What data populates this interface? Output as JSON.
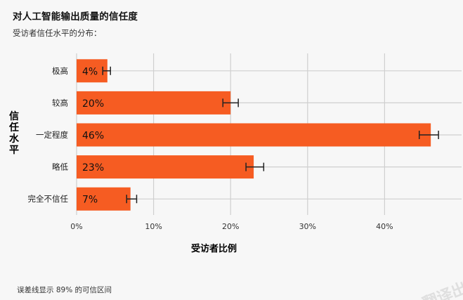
{
  "header": {
    "title": "对人工智能输出质量的信任度",
    "subtitle": "受访者信任水平的分布："
  },
  "footnote": "误差线显示 89% 的可信区间",
  "watermark": "翻译出",
  "colors": {
    "bar": "#f65c22",
    "grid": "#cfcfcf",
    "background": "#f7f7f7",
    "text": "#111111"
  },
  "chart_data": {
    "type": "bar",
    "orientation": "horizontal",
    "categories": [
      "极高",
      "较高",
      "一定程度",
      "略低",
      "完全不信任"
    ],
    "values": [
      4,
      20,
      46,
      23,
      7
    ],
    "value_labels": [
      "4%",
      "20%",
      "46%",
      "23%",
      "7%"
    ],
    "error_bars": [
      [
        3.4,
        4.4
      ],
      [
        19.0,
        21.0
      ],
      [
        44.5,
        47.0
      ],
      [
        22.0,
        24.3
      ],
      [
        6.5,
        7.8
      ]
    ],
    "ylabel": "信任水平",
    "xlabel": "受访者比例",
    "xlim": [
      0,
      50
    ],
    "xticks": [
      0,
      10,
      20,
      30,
      40
    ],
    "xtick_labels": [
      "0%",
      "10%",
      "20%",
      "30%",
      "40%"
    ],
    "grid": true
  }
}
